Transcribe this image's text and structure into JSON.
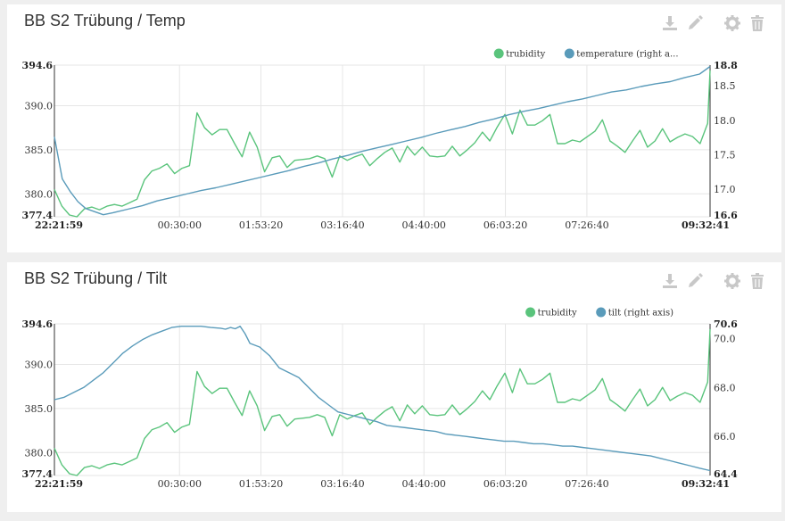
{
  "toolbar": {
    "download": "download-icon",
    "edit": "pencil-icon",
    "settings": "gear-icon",
    "delete": "trash-icon"
  },
  "colors": {
    "trubidity": "#5ac47c",
    "right_series": "#5a9bba"
  },
  "chart_data": [
    {
      "type": "line",
      "title": "BB S2 Trübung / Temp",
      "x_ticks": [
        "22:21:59",
        "00:30:00",
        "01:53:20",
        "03:16:40",
        "04:40:00",
        "06:03:20",
        "07:26:40",
        "09:32:41"
      ],
      "y_left_ticks": [
        "394.6",
        "390.0",
        "385.0",
        "380.0",
        "377.4"
      ],
      "y_right_ticks": [
        "18.8",
        "18.5",
        "18.0",
        "17.5",
        "17.0",
        "16.6"
      ],
      "ylim_left": [
        377.4,
        394.6
      ],
      "ylim_right": [
        16.6,
        18.8
      ],
      "legend": [
        "trubidity",
        "temperature (right a..."
      ],
      "legend_position": "top-right",
      "grid": true,
      "x_range_minutes": [
        0,
        670.7
      ],
      "series": [
        {
          "name": "trubidity",
          "axis": "left",
          "x": [
            0,
            7.7,
            15.4,
            23,
            30.7,
            38.4,
            46.1,
            53.8,
            61.4,
            69.1,
            76.8,
            84.5,
            92.2,
            99.8,
            107.5,
            115.2,
            122.9,
            130.6,
            138.2,
            145.9,
            153.6,
            161.3,
            169,
            176.6,
            184.3,
            192,
            199.7,
            207.4,
            215,
            222.7,
            230.4,
            238.1,
            245.8,
            253.4,
            261.1,
            268.8,
            276.5,
            284.2,
            291.8,
            299.5,
            307.2,
            314.9,
            322.6,
            330.2,
            337.9,
            345.6,
            353.3,
            361,
            368.6,
            376.3,
            384,
            391.7,
            399.4,
            407,
            414.7,
            422.4,
            430.1,
            437.8,
            445.4,
            453.1,
            460.8,
            468.5,
            476.2,
            483.8,
            491.5,
            499.2,
            506.9,
            514.6,
            522.2,
            529.9,
            537.6,
            545.3,
            553,
            560.6,
            568.3,
            576,
            583.7,
            591.4,
            599,
            606.7,
            614.4,
            622.1,
            629.8,
            637.4,
            645.1,
            652.8,
            660.5,
            668.2,
            670.7
          ],
          "y": [
            380.5,
            378.6,
            377.6,
            377.4,
            378.3,
            378.5,
            378.2,
            378.6,
            378.8,
            378.6,
            379.0,
            379.4,
            381.6,
            382.6,
            382.9,
            383.4,
            382.3,
            382.9,
            383.2,
            389.2,
            387.5,
            386.7,
            387.3,
            387.3,
            385.7,
            384.2,
            387.0,
            385.3,
            382.5,
            384.1,
            384.3,
            383.0,
            383.8,
            383.9,
            384.0,
            384.3,
            384.0,
            381.9,
            384.3,
            383.8,
            384.2,
            384.5,
            383.2,
            384.0,
            384.7,
            385.2,
            383.6,
            385.4,
            384.4,
            385.3,
            384.3,
            384.2,
            384.3,
            385.4,
            384.3,
            385.0,
            385.8,
            387.0,
            386.0,
            387.6,
            389.0,
            386.8,
            389.5,
            387.8,
            387.8,
            388.3,
            389.0,
            385.7,
            385.7,
            386.1,
            385.9,
            386.5,
            387.1,
            388.4,
            386.0,
            385.4,
            384.7,
            386.0,
            387.2,
            385.3,
            386.0,
            387.4,
            385.9,
            386.4,
            386.8,
            386.5,
            385.7,
            388.0,
            394.0
          ]
        },
        {
          "name": "temperature (right a...",
          "axis": "right",
          "x": [
            0,
            8,
            16,
            24,
            32,
            40,
            50,
            60,
            75,
            90,
            105,
            120,
            135,
            150,
            165,
            180,
            195,
            210,
            225,
            240,
            255,
            270,
            285,
            300,
            315,
            330,
            345,
            360,
            375,
            390,
            405,
            420,
            435,
            450,
            465,
            480,
            495,
            510,
            525,
            540,
            555,
            570,
            585,
            600,
            615,
            630,
            645,
            660,
            670.7
          ],
          "y": [
            17.76,
            17.15,
            16.97,
            16.82,
            16.72,
            16.68,
            16.63,
            16.66,
            16.71,
            16.76,
            16.83,
            16.88,
            16.93,
            16.98,
            17.02,
            17.07,
            17.12,
            17.17,
            17.22,
            17.27,
            17.33,
            17.38,
            17.44,
            17.49,
            17.55,
            17.6,
            17.65,
            17.7,
            17.75,
            17.81,
            17.86,
            17.91,
            17.97,
            18.02,
            18.08,
            18.13,
            18.17,
            18.22,
            18.27,
            18.31,
            18.36,
            18.41,
            18.44,
            18.49,
            18.53,
            18.56,
            18.62,
            18.67,
            18.78
          ]
        }
      ]
    },
    {
      "type": "line",
      "title": "BB S2 Trübung / Tilt",
      "x_ticks": [
        "22:21:59",
        "00:30:00",
        "01:53:20",
        "03:16:40",
        "04:40:00",
        "06:03:20",
        "07:26:40",
        "09:32:41"
      ],
      "y_left_ticks": [
        "394.6",
        "390.0",
        "385.0",
        "380.0",
        "377.4"
      ],
      "y_right_ticks": [
        "70.6",
        "70.0",
        "68.0",
        "66.0",
        "64.4"
      ],
      "ylim_left": [
        377.4,
        394.6
      ],
      "ylim_right": [
        64.4,
        70.6
      ],
      "legend": [
        "trubidity",
        "tilt (right axis)"
      ],
      "legend_position": "top-right",
      "grid": true,
      "x_range_minutes": [
        0,
        670.7
      ],
      "series": [
        {
          "name": "trubidity",
          "axis": "left",
          "x": [
            0,
            7.7,
            15.4,
            23,
            30.7,
            38.4,
            46.1,
            53.8,
            61.4,
            69.1,
            76.8,
            84.5,
            92.2,
            99.8,
            107.5,
            115.2,
            122.9,
            130.6,
            138.2,
            145.9,
            153.6,
            161.3,
            169,
            176.6,
            184.3,
            192,
            199.7,
            207.4,
            215,
            222.7,
            230.4,
            238.1,
            245.8,
            253.4,
            261.1,
            268.8,
            276.5,
            284.2,
            291.8,
            299.5,
            307.2,
            314.9,
            322.6,
            330.2,
            337.9,
            345.6,
            353.3,
            361,
            368.6,
            376.3,
            384,
            391.7,
            399.4,
            407,
            414.7,
            422.4,
            430.1,
            437.8,
            445.4,
            453.1,
            460.8,
            468.5,
            476.2,
            483.8,
            491.5,
            499.2,
            506.9,
            514.6,
            522.2,
            529.9,
            537.6,
            545.3,
            553,
            560.6,
            568.3,
            576,
            583.7,
            591.4,
            599,
            606.7,
            614.4,
            622.1,
            629.8,
            637.4,
            645.1,
            652.8,
            660.5,
            668.2,
            670.7
          ],
          "y": [
            380.5,
            378.6,
            377.6,
            377.4,
            378.3,
            378.5,
            378.2,
            378.6,
            378.8,
            378.6,
            379.0,
            379.4,
            381.6,
            382.6,
            382.9,
            383.4,
            382.3,
            382.9,
            383.2,
            389.2,
            387.5,
            386.7,
            387.3,
            387.3,
            385.7,
            384.2,
            387.0,
            385.3,
            382.5,
            384.1,
            384.3,
            383.0,
            383.8,
            383.9,
            384.0,
            384.3,
            384.0,
            381.9,
            384.3,
            383.8,
            384.2,
            384.5,
            383.2,
            384.0,
            384.7,
            385.2,
            383.6,
            385.4,
            384.4,
            385.3,
            384.3,
            384.2,
            384.3,
            385.4,
            384.3,
            385.0,
            385.8,
            387.0,
            386.0,
            387.6,
            389.0,
            386.8,
            389.5,
            387.8,
            387.8,
            388.3,
            389.0,
            385.7,
            385.7,
            386.1,
            385.9,
            386.5,
            387.1,
            388.4,
            386.0,
            385.4,
            384.7,
            386.0,
            387.2,
            385.3,
            386.0,
            387.4,
            385.9,
            386.4,
            386.8,
            386.5,
            385.7,
            388.0,
            394.0
          ]
        },
        {
          "name": "tilt (right axis)",
          "axis": "right",
          "x": [
            0,
            10,
            20,
            30,
            40,
            50,
            60,
            70,
            80,
            90,
            100,
            110,
            120,
            130,
            140,
            150,
            160,
            170,
            175,
            180,
            185,
            190,
            195,
            200,
            210,
            220,
            230,
            240,
            250,
            260,
            270,
            280,
            290,
            300,
            310,
            320,
            330,
            340,
            350,
            360,
            370,
            380,
            390,
            400,
            410,
            420,
            430,
            440,
            450,
            460,
            470,
            480,
            490,
            500,
            510,
            520,
            530,
            540,
            550,
            560,
            570,
            580,
            590,
            600,
            610,
            620,
            630,
            640,
            650,
            660,
            670.7
          ],
          "y": [
            67.5,
            67.6,
            67.8,
            68.0,
            68.3,
            68.6,
            69.0,
            69.4,
            69.7,
            69.95,
            70.15,
            70.3,
            70.45,
            70.5,
            70.5,
            70.5,
            70.45,
            70.42,
            70.38,
            70.45,
            70.4,
            70.5,
            70.2,
            69.8,
            69.65,
            69.3,
            68.8,
            68.6,
            68.4,
            68.0,
            67.6,
            67.3,
            67.0,
            66.9,
            66.8,
            66.7,
            66.6,
            66.45,
            66.4,
            66.35,
            66.3,
            66.25,
            66.2,
            66.1,
            66.05,
            66.0,
            65.95,
            65.9,
            65.85,
            65.8,
            65.8,
            65.75,
            65.7,
            65.7,
            65.65,
            65.6,
            65.6,
            65.55,
            65.5,
            65.45,
            65.4,
            65.35,
            65.3,
            65.25,
            65.2,
            65.1,
            65.0,
            64.9,
            64.8,
            64.7,
            64.6
          ]
        }
      ]
    }
  ]
}
